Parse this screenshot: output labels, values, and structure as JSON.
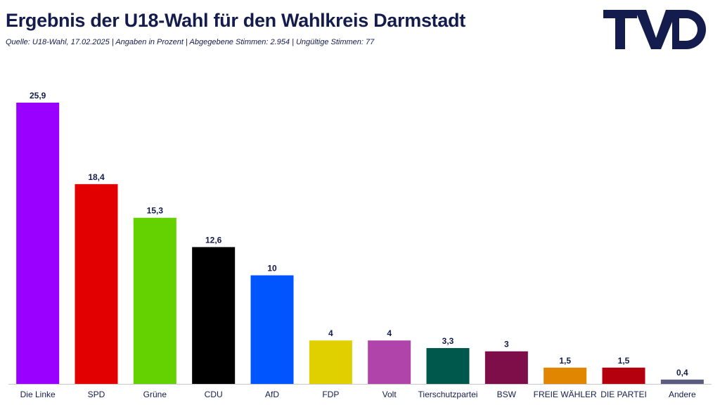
{
  "header": {
    "title": "Ergebnis der U18-Wahl für den Wahlkreis Darmstadt",
    "subtitle": "Quelle: U18-Wahl, 17.02.2025 | Angaben in Prozent | Abgegebene Stimmen: 2.954 | Ungültige Stimmen: 77",
    "logo_text": "TVD",
    "logo_color": "#141c4d"
  },
  "chart_data": {
    "type": "bar",
    "categories": [
      "Die Linke",
      "SPD",
      "Grüne",
      "CDU",
      "AfD",
      "FDP",
      "Volt",
      "Tierschutzpartei",
      "BSW",
      "FREIE WÄHLER",
      "DIE PARTEI",
      "Andere"
    ],
    "values": [
      25.9,
      18.4,
      15.3,
      12.6,
      10,
      4,
      4,
      3.3,
      3,
      1.5,
      1.5,
      0.4
    ],
    "value_labels": [
      "25,9",
      "18,4",
      "15,3",
      "12,6",
      "10",
      "4",
      "4",
      "3,3",
      "3",
      "1,5",
      "1,5",
      "0,4"
    ],
    "colors": [
      "#9900ff",
      "#e30000",
      "#64d200",
      "#000000",
      "#0055ff",
      "#e0d000",
      "#b044aa",
      "#00574b",
      "#7d0e4a",
      "#e08600",
      "#b4000e",
      "#5c5c80"
    ],
    "ylim": [
      0,
      27
    ],
    "grid": false,
    "legend": "none"
  }
}
